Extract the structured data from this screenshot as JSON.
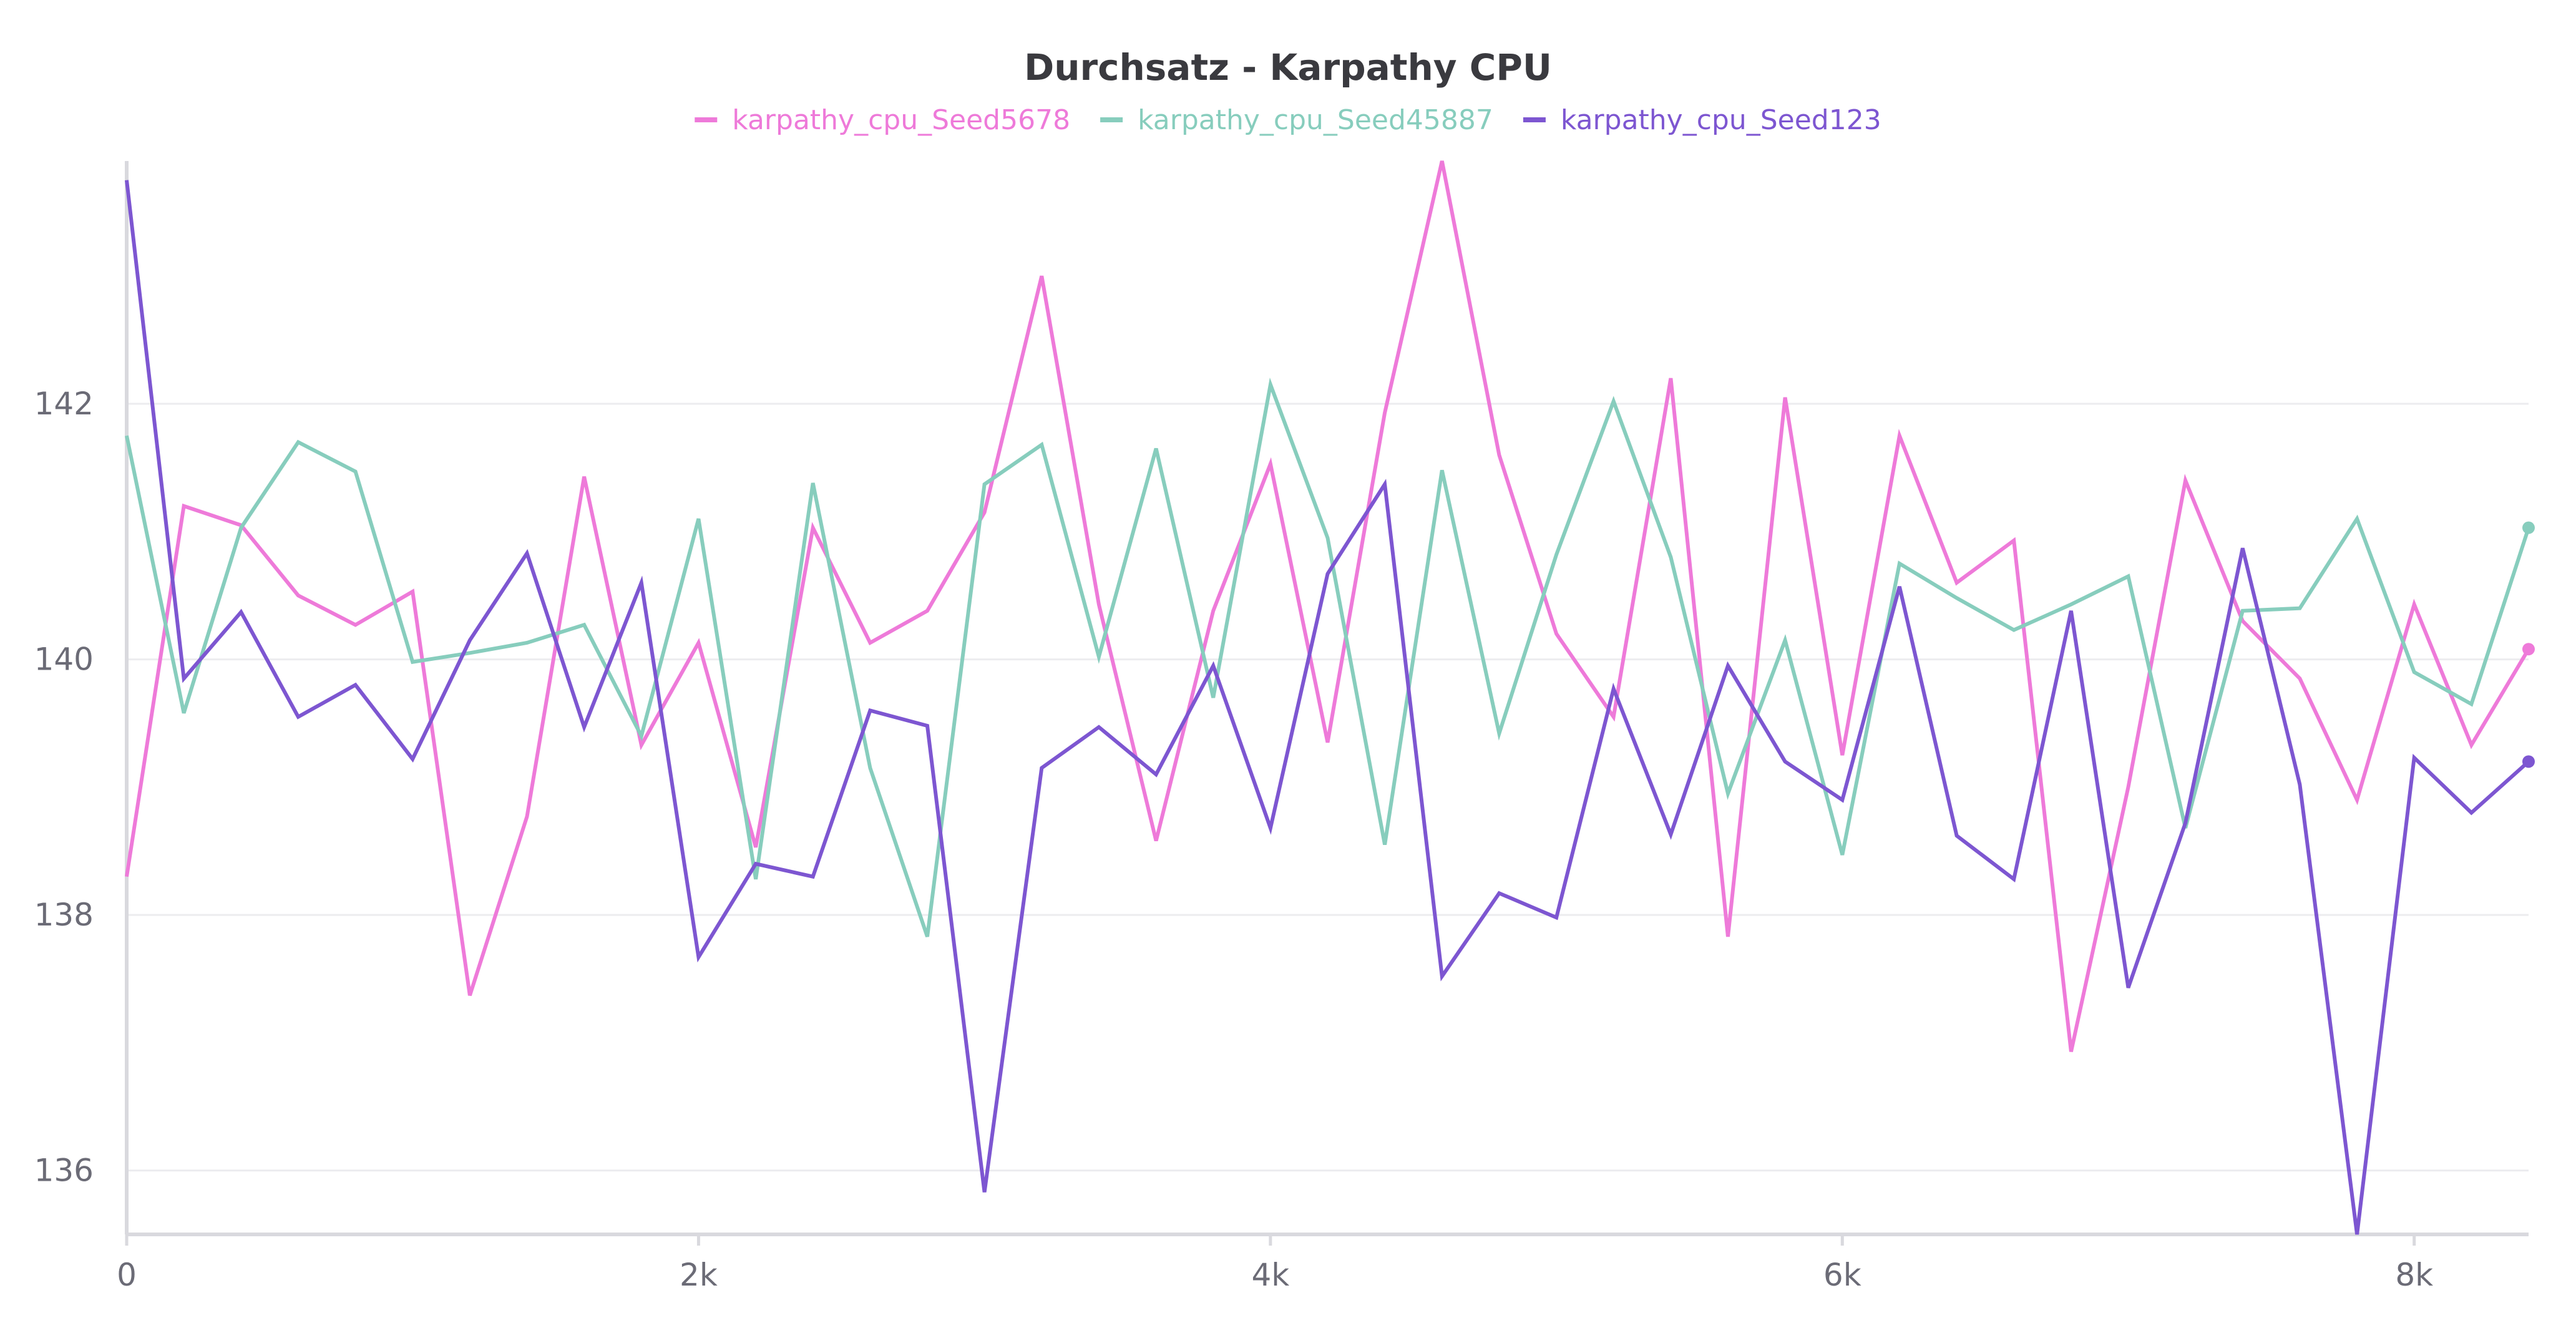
{
  "chart_data": {
    "type": "line",
    "title": "Durchsatz - Karpathy CPU",
    "xlabel": "",
    "ylabel": "",
    "xlim": [
      0,
      8400
    ],
    "ylim": [
      135.5,
      143.9
    ],
    "x_ticks": [
      {
        "value": 0,
        "label": "0"
      },
      {
        "value": 2000,
        "label": "2k"
      },
      {
        "value": 4000,
        "label": "4k"
      },
      {
        "value": 6000,
        "label": "6k"
      },
      {
        "value": 8000,
        "label": "8k"
      }
    ],
    "y_ticks": [
      {
        "value": 136,
        "label": "136"
      },
      {
        "value": 138,
        "label": "138"
      },
      {
        "value": 140,
        "label": "140"
      },
      {
        "value": 142,
        "label": "142"
      }
    ],
    "grid": true,
    "legend_position": "top-center",
    "x": [
      0,
      200,
      400,
      600,
      800,
      1000,
      1200,
      1400,
      1600,
      1800,
      2000,
      2200,
      2400,
      2600,
      2800,
      3000,
      3200,
      3400,
      3600,
      3800,
      4000,
      4200,
      4400,
      4600,
      4800,
      5000,
      5200,
      5400,
      5600,
      5800,
      6000,
      6200,
      6400,
      6600,
      6800,
      7000,
      7200,
      7400,
      7600,
      7800,
      8000,
      8200,
      8400
    ],
    "series": [
      {
        "name": "karpathy_cpu_Seed5678",
        "color": "#ee7ad9",
        "values": [
          138.3,
          141.2,
          141.05,
          140.5,
          140.27,
          140.53,
          137.37,
          138.77,
          141.43,
          139.33,
          140.13,
          138.53,
          141.03,
          140.13,
          140.38,
          141.15,
          143.0,
          140.43,
          138.58,
          140.38,
          141.53,
          139.35,
          141.93,
          143.9,
          141.6,
          140.2,
          139.55,
          142.2,
          137.83,
          142.05,
          139.25,
          141.75,
          140.6,
          140.93,
          136.93,
          139.0,
          141.4,
          140.3,
          139.85,
          138.9,
          140.43,
          139.33,
          140.08
        ]
      },
      {
        "name": "karpathy_cpu_Seed45887",
        "color": "#87cdbd",
        "values": [
          141.75,
          139.58,
          141.03,
          141.7,
          141.47,
          139.98,
          140.05,
          140.13,
          140.27,
          139.4,
          141.1,
          138.28,
          141.38,
          139.15,
          137.83,
          141.37,
          141.68,
          140.02,
          141.65,
          139.7,
          142.15,
          140.95,
          138.55,
          141.48,
          139.42,
          140.82,
          142.02,
          140.8,
          138.95,
          140.15,
          138.47,
          140.75,
          140.48,
          140.23,
          140.43,
          140.65,
          138.68,
          140.38,
          140.4,
          141.1,
          139.9,
          139.65,
          141.03
        ]
      },
      {
        "name": "karpathy_cpu_Seed123",
        "color": "#7d56d1",
        "values": [
          143.75,
          139.85,
          140.37,
          139.55,
          139.8,
          139.22,
          140.15,
          140.83,
          139.47,
          140.6,
          137.67,
          138.4,
          138.3,
          139.6,
          139.48,
          135.83,
          139.15,
          139.47,
          139.1,
          139.95,
          138.68,
          140.67,
          141.37,
          137.52,
          138.17,
          137.98,
          139.77,
          138.63,
          139.95,
          139.2,
          138.9,
          140.57,
          138.62,
          138.28,
          140.38,
          137.43,
          138.72,
          140.87,
          139.02,
          135.5,
          139.23,
          138.8,
          139.2
        ]
      }
    ]
  }
}
